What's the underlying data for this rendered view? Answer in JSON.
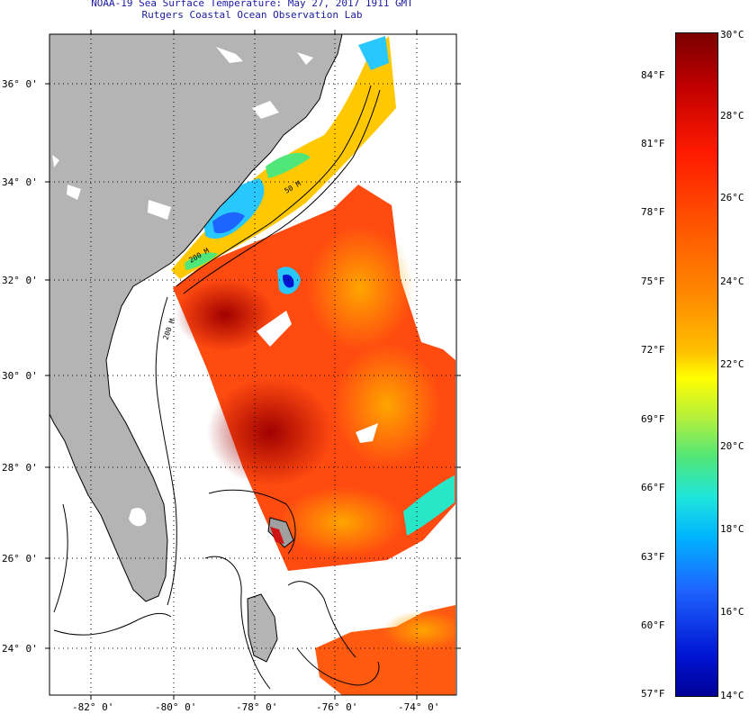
{
  "header": {
    "title_line1": "NOAA-19 Sea Surface Temperature:  May 27, 2017 1911 GMT",
    "title_line2": "Rutgers Coastal Ocean Observation Lab"
  },
  "map": {
    "latitude_labels": [
      "36° 0'",
      "34° 0'",
      "32° 0'",
      "30° 0'",
      "28° 0'",
      "26° 0'",
      "24° 0'"
    ],
    "longitude_labels": [
      "-82° 0'",
      "-80° 0'",
      "-78° 0'",
      "-76° 0'",
      "-74° 0'"
    ],
    "isobath_labels": [
      "200 M",
      "50 M",
      "200 M"
    ],
    "colors": {
      "land": "#b4b4b4",
      "frame": "#000000"
    }
  },
  "colorbar": {
    "celsius_labels": [
      "30°C",
      "28°C",
      "26°C",
      "24°C",
      "22°C",
      "20°C",
      "18°C",
      "16°C",
      "14°C"
    ],
    "fahrenheit_labels": [
      "84°F",
      "81°F",
      "78°F",
      "75°F",
      "72°F",
      "69°F",
      "66°F",
      "63°F",
      "60°F",
      "57°F"
    ]
  }
}
